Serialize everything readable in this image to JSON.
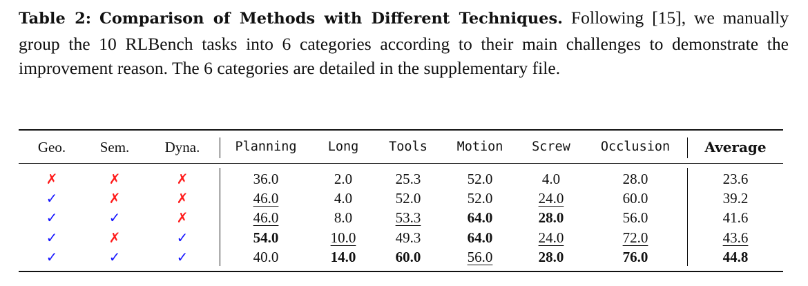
{
  "caption": {
    "label": "Table 2:",
    "title": "Comparison of Methods with Different Techniques.",
    "text": "Following [15], we manually group the 10 RLBench tasks into 6 categories according to their main challenges to demonstrate the improvement reason. The 6 categories are detailed in the supplementary file."
  },
  "table": {
    "headers": [
      "Geo.",
      "Sem.",
      "Dyna.",
      "Planning",
      "Long",
      "Tools",
      "Motion",
      "Screw",
      "Occlusion",
      "Average"
    ],
    "symbols": {
      "check": "✓",
      "cross": "✗"
    },
    "rows": [
      {
        "geo": "✗",
        "sem": "✗",
        "dyna": "✗",
        "values": [
          "36.0",
          "2.0",
          "25.3",
          "52.0",
          "4.0",
          "28.0",
          "23.6"
        ]
      },
      {
        "geo": "✓",
        "sem": "✗",
        "dyna": "✗",
        "values": [
          "46.0",
          "4.0",
          "52.0",
          "52.0",
          "24.0",
          "60.0",
          "39.2"
        ]
      },
      {
        "geo": "✓",
        "sem": "✓",
        "dyna": "✗",
        "values": [
          "46.0",
          "8.0",
          "53.3",
          "64.0",
          "28.0",
          "56.0",
          "41.6"
        ]
      },
      {
        "geo": "✓",
        "sem": "✗",
        "dyna": "✓",
        "values": [
          "54.0",
          "10.0",
          "49.3",
          "64.0",
          "24.0",
          "72.0",
          "43.6"
        ]
      },
      {
        "geo": "✓",
        "sem": "✓",
        "dyna": "✓",
        "values": [
          "40.0",
          "14.0",
          "60.0",
          "56.0",
          "28.0",
          "76.0",
          "44.8"
        ]
      }
    ],
    "colors": {
      "check": "#1414ff",
      "cross": "#ff1a1a"
    }
  }
}
